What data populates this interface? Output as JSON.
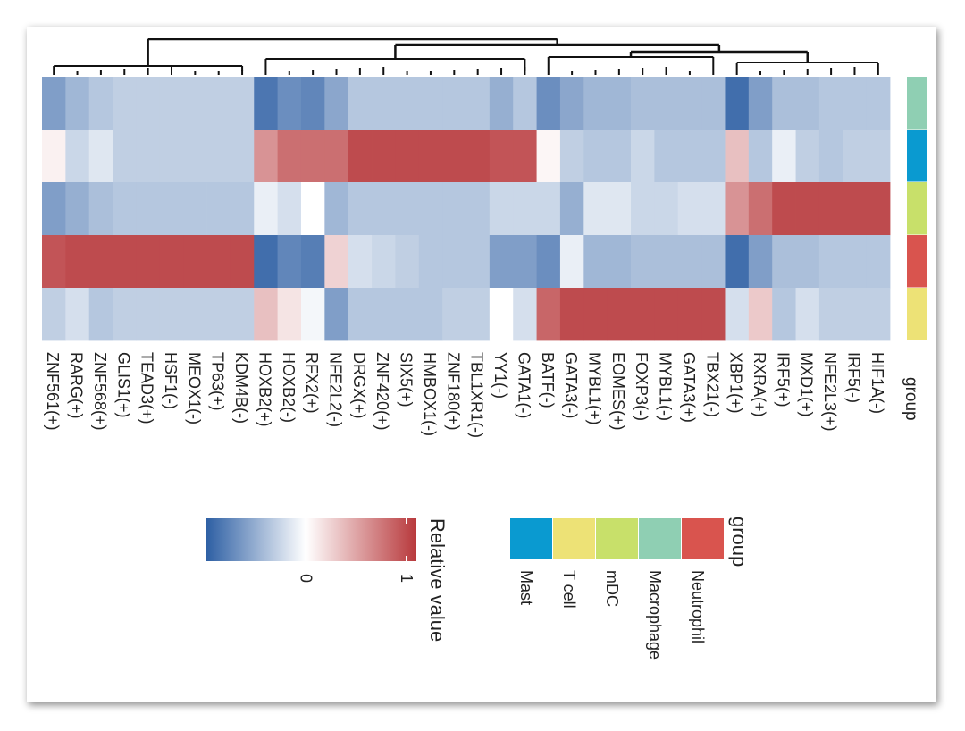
{
  "chart_data": {
    "type": "heatmap",
    "orientation": "rotated 90 degrees clockwise",
    "columns": [
      "ZNF561(+)",
      "RARG(+)",
      "ZNF568(+)",
      "GLIS1(+)",
      "TEAD3(+)",
      "HSF1(-)",
      "MEOX1(-)",
      "TP63(+)",
      "KDM4B(-)",
      "HOXB2(+)",
      "HOXB2(-)",
      "RFX2(+)",
      "NFE2L2(-)",
      "DRGX(+)",
      "ZNF420(+)",
      "SIX5(+)",
      "HMBOX1(-)",
      "ZNF180(+)",
      "TBL1XR1(-)",
      "YY1(-)",
      "GATA1(-)",
      "BATF(-)",
      "GATA3(-)",
      "MYBL1(+)",
      "EOMES(+)",
      "FOXP3(-)",
      "MYBL1(-)",
      "GATA3(+)",
      "TBX21(-)",
      "XBP1(+)",
      "RXRA(+)",
      "IRF5(+)",
      "MXD1(+)",
      "NFE2L3(+)",
      "IRF5(-)",
      "HIF1A(-)"
    ],
    "rows": [
      "Macrophage",
      "Mast",
      "mDC",
      "Neutrophil",
      "T cell"
    ],
    "group_label": "group",
    "values": [
      [
        -0.6,
        -0.45,
        -0.35,
        -0.3,
        -0.3,
        -0.3,
        -0.3,
        -0.3,
        -0.3,
        -0.85,
        -0.7,
        -0.75,
        -0.55,
        -0.35,
        -0.35,
        -0.35,
        -0.35,
        -0.35,
        -0.35,
        -0.5,
        -0.35,
        -0.7,
        -0.55,
        -0.45,
        -0.45,
        -0.4,
        -0.4,
        -0.4,
        -0.4,
        -0.9,
        -0.6,
        -0.4,
        -0.4,
        -0.35,
        -0.35,
        -0.35
      ],
      [
        0.08,
        -0.25,
        -0.15,
        -0.3,
        -0.3,
        -0.3,
        -0.3,
        -0.3,
        -0.3,
        0.6,
        0.8,
        0.8,
        0.8,
        1.0,
        1.0,
        1.0,
        1.0,
        1.0,
        1.0,
        0.95,
        0.95,
        0.05,
        -0.3,
        -0.35,
        -0.35,
        -0.25,
        -0.35,
        -0.35,
        -0.35,
        0.35,
        -0.35,
        -0.1,
        -0.3,
        -0.35,
        -0.3,
        -0.3
      ],
      [
        -0.6,
        -0.5,
        -0.4,
        -0.35,
        -0.35,
        -0.35,
        -0.35,
        -0.35,
        -0.35,
        -0.1,
        -0.2,
        0.0,
        -0.45,
        -0.35,
        -0.35,
        -0.35,
        -0.35,
        -0.35,
        -0.35,
        -0.25,
        -0.25,
        -0.25,
        -0.5,
        -0.15,
        -0.15,
        -0.25,
        -0.25,
        -0.2,
        -0.2,
        0.6,
        0.8,
        1.0,
        1.0,
        1.0,
        1.0,
        1.0
      ],
      [
        0.95,
        1.0,
        1.0,
        1.0,
        1.0,
        1.0,
        1.0,
        1.0,
        1.0,
        -0.9,
        -0.75,
        -0.8,
        0.25,
        -0.2,
        -0.25,
        -0.3,
        -0.35,
        -0.35,
        -0.35,
        -0.6,
        -0.6,
        -0.7,
        -0.1,
        -0.45,
        -0.45,
        -0.4,
        -0.4,
        -0.4,
        -0.4,
        -0.9,
        -0.6,
        -0.4,
        -0.4,
        -0.35,
        -0.35,
        -0.35
      ],
      [
        -0.3,
        -0.2,
        -0.35,
        -0.3,
        -0.3,
        -0.3,
        -0.3,
        -0.3,
        -0.3,
        0.35,
        0.15,
        -0.05,
        -0.6,
        -0.35,
        -0.35,
        -0.35,
        -0.35,
        -0.3,
        -0.3,
        0.0,
        -0.2,
        0.85,
        1.0,
        1.0,
        1.0,
        1.0,
        1.0,
        1.0,
        1.0,
        -0.2,
        0.3,
        -0.35,
        -0.2,
        -0.3,
        -0.3,
        -0.3
      ]
    ],
    "group_colors": {
      "Macrophage": "#8fcfb3",
      "Mast": "#0a9ad0",
      "mDC": "#c8e06a",
      "Neutrophil": "#d9544e",
      "T cell": "#ede276"
    },
    "color_scale": {
      "low": "#2c5ea3",
      "mid": "#ffffff",
      "high": "#b8393c",
      "midpoint": 0,
      "high_value": 1.1,
      "low_value": -1.0
    },
    "colorbar": {
      "title": "Relative value",
      "tick_labels": [
        "0",
        "1"
      ],
      "tick_values": [
        0,
        1
      ]
    },
    "group_legend": {
      "title": "group",
      "items": [
        "Neutrophil",
        "Macrophage",
        "mDC",
        "T cell",
        "Mast"
      ]
    }
  }
}
